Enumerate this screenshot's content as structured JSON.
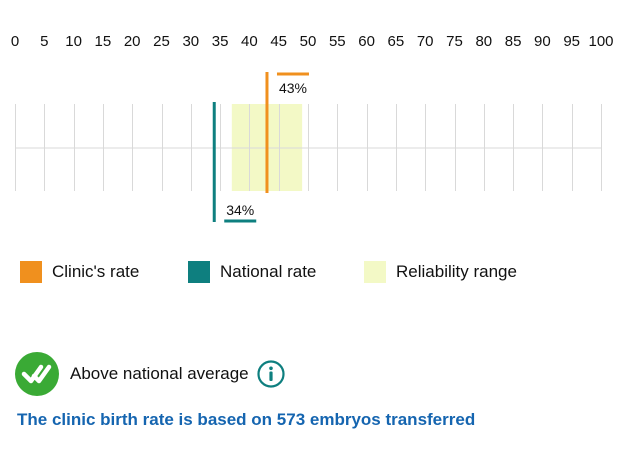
{
  "colors": {
    "clinic": "#f0901e",
    "national": "#0e7f7f",
    "reliability": "#f3f9c6",
    "grid": "#d9d9d9",
    "status_green": "#3aaa35",
    "info": "#0e7f7f",
    "link": "#1565b0"
  },
  "chart_data": {
    "type": "range-bar",
    "axis": {
      "min": 0,
      "max": 100,
      "step": 5,
      "tick_labels": [
        "0",
        "5",
        "10",
        "15",
        "20",
        "25",
        "30",
        "35",
        "40",
        "45",
        "50",
        "55",
        "60",
        "65",
        "70",
        "75",
        "80",
        "85",
        "90",
        "95",
        "100"
      ]
    },
    "clinic_rate": 43,
    "clinic_rate_label": "43%",
    "national_rate": 34,
    "national_rate_label": "34%",
    "reliability_range": [
      37,
      49
    ]
  },
  "legend": {
    "items": [
      {
        "key": "clinic",
        "label": "Clinic's rate"
      },
      {
        "key": "national",
        "label": "National rate"
      },
      {
        "key": "reliability",
        "label": "Reliability range"
      }
    ]
  },
  "status": {
    "label": "Above national average",
    "icon": "double-check-icon",
    "info_icon": "info-icon"
  },
  "footnote": {
    "text": "The clinic birth rate is based on 573 embryos transferred"
  }
}
